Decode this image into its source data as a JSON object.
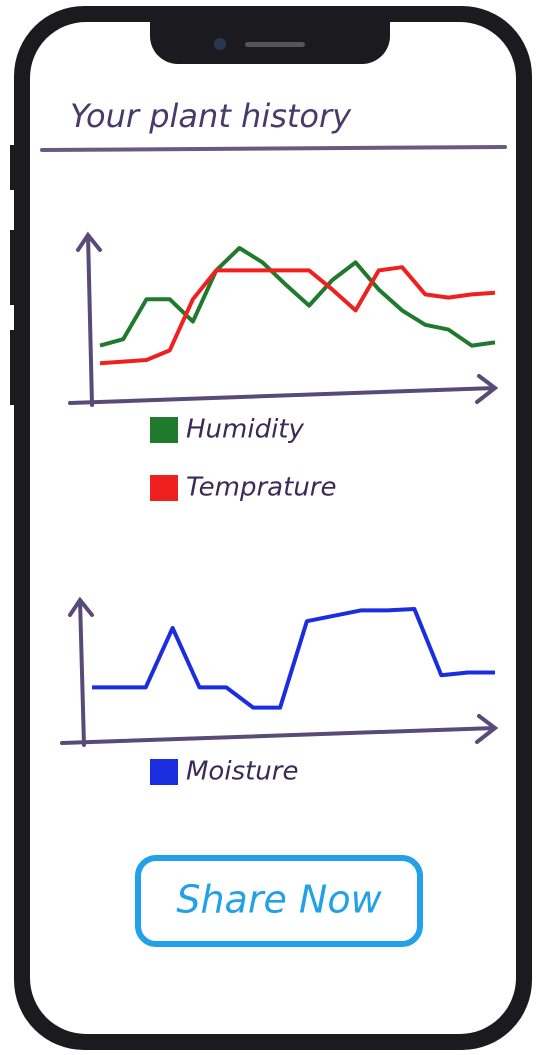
{
  "header": {
    "title": "Your plant history"
  },
  "charts": [
    {
      "type": "line",
      "ylim": [
        0,
        100
      ],
      "series": [
        {
          "name": "Humidity",
          "color": "#1f7a2e",
          "values": [
            34,
            38,
            63,
            63,
            49,
            81,
            95,
            86,
            72,
            59,
            75,
            86,
            69,
            56,
            47,
            44,
            34,
            36
          ]
        },
        {
          "name": "Temprature",
          "color": "#f02020",
          "values": [
            23,
            24,
            25,
            31,
            63,
            81,
            81,
            81,
            81,
            81,
            69,
            56,
            81,
            83,
            66,
            64,
            66,
            67
          ]
        }
      ]
    },
    {
      "type": "line",
      "ylim": [
        0,
        100
      ],
      "series": [
        {
          "name": "Moisture",
          "color": "#1a2ee0",
          "values": [
            39,
            39,
            39,
            83,
            39,
            39,
            24,
            24,
            88,
            92,
            96,
            96,
            97,
            48,
            50,
            50
          ]
        }
      ]
    }
  ],
  "button": {
    "label": "Share Now"
  }
}
